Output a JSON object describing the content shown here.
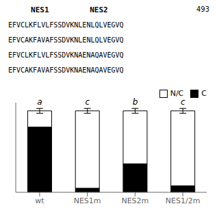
{
  "chart_data": {
    "type": "bar",
    "stacked": true,
    "annotations": [
      "NES1",
      "NES2",
      "493"
    ],
    "sequence_lines": [
      "EFVCLKFLVLFSSDVKNLENLQLVEGVQ",
      "EFVCAKFAVAFSSDVKNLENLQLVEGVQ",
      "EFVCLKFLVLFSSDVKNAENAQAVEGVQ",
      "EFVCAKFAVAFSSDVKNAENAQAVEGVQ"
    ],
    "categories": [
      "wt",
      "NES1m",
      "NES2m",
      "NES1/2m"
    ],
    "series": [
      {
        "name": "C",
        "color": "#000000",
        "values": [
          80,
          5,
          35,
          8
        ]
      },
      {
        "name": "N/C",
        "color": "#ffffff",
        "values": [
          20,
          95,
          65,
          92
        ]
      }
    ],
    "error_bars": [
      3,
      3,
      3,
      3
    ],
    "letter_labels": [
      "a",
      "c",
      "b",
      "c"
    ],
    "ylim": [
      0,
      110
    ],
    "tick_labels": "x",
    "legend": "upper right"
  }
}
